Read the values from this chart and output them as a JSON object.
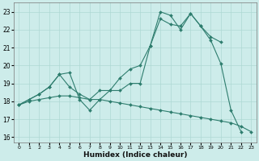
{
  "xlabel": "Humidex (Indice chaleur)",
  "bg_color": "#cdecea",
  "line_color": "#2e7d6e",
  "grid_color": "#aed8d4",
  "xlim": [
    -0.5,
    23.5
  ],
  "ylim": [
    15.7,
    23.5
  ],
  "yticks": [
    16,
    17,
    18,
    19,
    20,
    21,
    22,
    23
  ],
  "xticks": [
    0,
    1,
    2,
    3,
    4,
    5,
    6,
    7,
    8,
    9,
    10,
    11,
    12,
    13,
    14,
    15,
    16,
    17,
    18,
    19,
    20,
    21,
    22,
    23
  ],
  "series1_x": [
    0,
    1,
    2,
    3,
    4,
    5,
    6,
    7,
    8,
    9,
    10,
    11,
    12,
    13,
    14,
    15,
    16,
    17,
    18,
    19,
    20,
    21,
    22
  ],
  "series1_y": [
    17.8,
    18.1,
    18.4,
    18.8,
    19.5,
    19.6,
    18.1,
    17.5,
    18.1,
    18.6,
    18.6,
    19.0,
    19.0,
    21.1,
    23.0,
    22.8,
    22.0,
    22.9,
    22.2,
    21.4,
    20.1,
    17.5,
    16.3
  ],
  "series2_x": [
    0,
    1,
    2,
    3,
    4,
    5,
    6,
    7,
    8,
    9,
    10,
    11,
    12,
    13,
    14,
    15,
    16,
    17,
    18,
    19,
    20
  ],
  "series2_y": [
    17.8,
    18.1,
    18.4,
    18.8,
    19.5,
    18.8,
    18.4,
    18.1,
    18.6,
    18.6,
    19.3,
    19.8,
    20.0,
    21.1,
    22.6,
    22.3,
    22.2,
    22.9,
    22.2,
    21.6,
    21.3
  ],
  "series3_x": [
    0,
    1,
    2,
    3,
    4,
    5,
    6,
    7,
    8,
    9,
    10,
    11,
    12,
    13,
    14,
    15,
    16,
    17,
    18,
    19,
    20,
    21,
    22,
    23
  ],
  "series3_y": [
    17.8,
    18.0,
    18.1,
    18.2,
    18.3,
    18.3,
    18.2,
    18.1,
    18.1,
    18.0,
    17.9,
    17.8,
    17.7,
    17.6,
    17.5,
    17.4,
    17.3,
    17.2,
    17.1,
    17.0,
    16.9,
    16.8,
    16.6,
    16.3
  ]
}
